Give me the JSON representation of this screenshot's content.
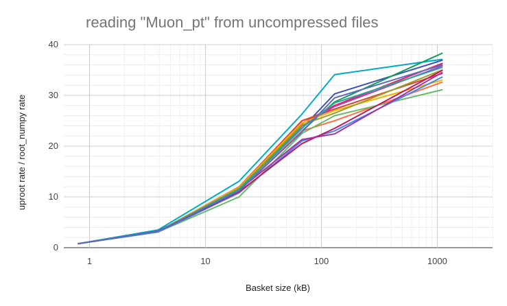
{
  "chart_data": {
    "type": "line",
    "title": "reading \"Muon_pt\" from uncompressed files",
    "xlabel": "Basket size (kB)",
    "ylabel": "uproot rate / root_numpy rate",
    "x_scale": "log",
    "xlim": [
      0.6,
      3000
    ],
    "ylim": [
      0,
      40
    ],
    "x_ticks": [
      1,
      10,
      100,
      1000
    ],
    "x_tick_labels": [
      "1",
      "10",
      "100",
      "1000"
    ],
    "y_ticks": [
      0,
      10,
      20,
      30,
      40
    ],
    "y_tick_labels": [
      "0",
      "10",
      "20",
      "30",
      "40"
    ],
    "grid": true,
    "legend": "none",
    "x": [
      0.8,
      3.9,
      19.5,
      68,
      130,
      1100
    ],
    "series": [
      {
        "color": "#00acc1",
        "values": [
          0.8,
          3.5,
          13.1,
          26.3,
          34.1,
          37.1
        ]
      },
      {
        "color": "#3f51b5",
        "values": [
          0.8,
          3.3,
          11.5,
          23.5,
          30.3,
          36.9
        ]
      },
      {
        "color": "#0f9d58",
        "values": [
          0.8,
          3.2,
          11.2,
          23.0,
          28.7,
          38.3
        ]
      },
      {
        "color": "#e91e63",
        "values": [
          0.8,
          3.2,
          11.8,
          24.5,
          28.0,
          36.3
        ]
      },
      {
        "color": "#db4437",
        "values": [
          0.8,
          3.2,
          12.0,
          25.0,
          27.3,
          34.3
        ]
      },
      {
        "color": "#ab47bc",
        "values": [
          0.8,
          3.2,
          11.6,
          24.0,
          27.8,
          35.8
        ]
      },
      {
        "color": "#f4b400",
        "values": [
          0.8,
          3.2,
          11.9,
          24.6,
          27.0,
          33.0
        ]
      },
      {
        "color": "#ff7043",
        "values": [
          0.8,
          3.2,
          11.3,
          23.0,
          25.0,
          32.6
        ]
      },
      {
        "color": "#9e9d24",
        "values": [
          0.8,
          3.2,
          11.7,
          24.2,
          26.5,
          35.0
        ]
      },
      {
        "color": "#66bb6a",
        "values": [
          0.8,
          3.1,
          10.0,
          22.5,
          26.0,
          31.1
        ]
      },
      {
        "color": "#4285f4",
        "values": [
          0.8,
          3.1,
          10.8,
          21.0,
          23.0,
          33.6
        ]
      },
      {
        "color": "#c2185b",
        "values": [
          0.8,
          3.2,
          11.0,
          20.5,
          23.5,
          34.9
        ]
      },
      {
        "color": "#a8329b",
        "values": [
          0.8,
          3.2,
          11.4,
          21.3,
          22.4,
          34.5
        ]
      },
      {
        "color": "#26a69a",
        "values": [
          0.8,
          3.2,
          11.5,
          23.6,
          28.5,
          35.5
        ]
      },
      {
        "color": "#5c6bc0",
        "values": [
          0.8,
          3.2,
          11.2,
          22.8,
          29.5,
          36.0
        ]
      }
    ]
  }
}
